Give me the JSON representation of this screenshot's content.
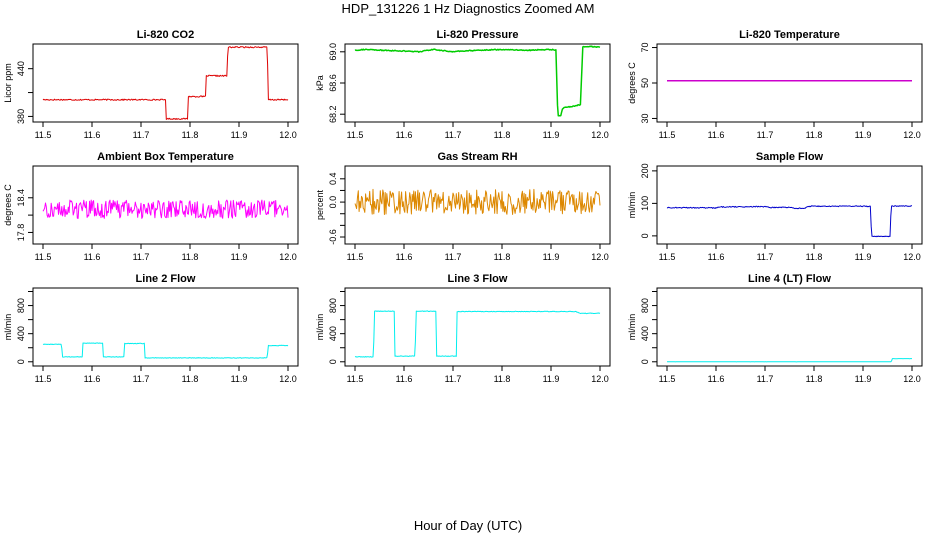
{
  "title": "HDP_131226  1 Hz Diagnostics Zoomed AM",
  "xlabel": "Hour of Day (UTC)",
  "chart_data": [
    {
      "type": "line",
      "title": "Li-820 CO2",
      "ylabel": "Licor ppm",
      "color": "#dd0000",
      "xlim": [
        11.5,
        12.0
      ],
      "ylim": [
        373,
        471
      ],
      "xticks": [
        "11.5",
        "11.6",
        "11.7",
        "11.8",
        "11.9",
        "12.0"
      ],
      "yticks": [
        380,
        410,
        440
      ],
      "yticklabels": [
        "380",
        "",
        "440"
      ],
      "noise": 0.8,
      "series": [
        {
          "x": [
            11.5,
            11.75,
            11.751,
            11.795,
            11.796,
            11.832,
            11.833,
            11.876,
            11.877,
            11.958,
            11.959,
            12.0
          ],
          "values": [
            401,
            401,
            377,
            377,
            405,
            405,
            431,
            431,
            467,
            467,
            401,
            401
          ]
        }
      ]
    },
    {
      "type": "line",
      "title": "Li-820 Pressure",
      "ylabel": "kPa",
      "color": "#00cc00",
      "xlim": [
        11.5,
        12.0
      ],
      "ylim": [
        68.1,
        69.1
      ],
      "xticks": [
        "11.5",
        "11.6",
        "11.7",
        "11.8",
        "11.9",
        "12.0"
      ],
      "yticks": [
        68.2,
        68.6,
        69.0
      ],
      "yticklabels": [
        "68.2",
        "68.6",
        "69.0"
      ],
      "noise": 0.006,
      "series": [
        {
          "x": [
            11.5,
            11.52,
            11.55,
            11.6,
            11.63,
            11.66,
            11.7,
            11.72,
            11.75,
            11.8,
            11.85,
            11.9,
            11.91,
            11.914,
            11.92,
            11.924,
            11.96,
            11.965,
            11.975,
            12.0
          ],
          "values": [
            69.02,
            69.03,
            69.02,
            69.01,
            69.0,
            69.03,
            69.0,
            69.01,
            69.02,
            69.03,
            69.02,
            69.03,
            69.02,
            68.18,
            68.18,
            68.28,
            68.32,
            69.06,
            69.07,
            69.06
          ]
        }
      ]
    },
    {
      "type": "line",
      "title": "Li-820 Temperature",
      "ylabel": "degrees C",
      "color": "#cc00cc",
      "xlim": [
        11.5,
        12.0
      ],
      "ylim": [
        28,
        72
      ],
      "xticks": [
        "11.5",
        "11.6",
        "11.7",
        "11.8",
        "11.9",
        "12.0"
      ],
      "yticks": [
        30,
        50,
        70
      ],
      "yticklabels": [
        "30",
        "50",
        "70"
      ],
      "noise": 0,
      "series": [
        {
          "x": [
            11.5,
            12.0
          ],
          "values": [
            51.3,
            51.3
          ]
        }
      ]
    },
    {
      "type": "line",
      "title": "Ambient Box Temperature",
      "ylabel": "degrees C",
      "color": "#ff00ff",
      "xlim": [
        11.5,
        12.0
      ],
      "ylim": [
        17.6,
        18.95
      ],
      "xticks": [
        "11.5",
        "11.6",
        "11.7",
        "11.8",
        "11.9",
        "12.0"
      ],
      "yticks": [
        17.8,
        18.1,
        18.4
      ],
      "yticklabels": [
        "17.8",
        "",
        "18.4"
      ],
      "noise": 0.16,
      "series": [
        {
          "x": [
            11.5,
            12.0
          ],
          "values": [
            18.2,
            18.2
          ]
        }
      ]
    },
    {
      "type": "line",
      "title": "Gas Stream RH",
      "ylabel": "percent",
      "color": "#dd8800",
      "xlim": [
        11.5,
        12.0
      ],
      "ylim": [
        -0.72,
        0.62
      ],
      "xticks": [
        "11.5",
        "11.6",
        "11.7",
        "11.8",
        "11.9",
        "12.0"
      ],
      "yticks": [
        -0.6,
        -0.4,
        -0.2,
        0.0,
        0.2,
        0.4
      ],
      "yticklabels": [
        "-0.6",
        "",
        "",
        "0.0",
        "",
        "0.4"
      ],
      "noise": 0.22,
      "series": [
        {
          "x": [
            11.5,
            12.0
          ],
          "values": [
            0.0,
            0.0
          ]
        }
      ]
    },
    {
      "type": "line",
      "title": "Sample Flow",
      "ylabel": "ml/min",
      "color": "#0000cc",
      "xlim": [
        11.5,
        12.0
      ],
      "ylim": [
        -25,
        215
      ],
      "xticks": [
        "11.5",
        "11.6",
        "11.7",
        "11.8",
        "11.9",
        "12.0"
      ],
      "yticks": [
        0,
        100,
        200
      ],
      "yticklabels": [
        "0",
        "100",
        "200"
      ],
      "noise": 1.5,
      "series": [
        {
          "x": [
            11.5,
            11.6,
            11.61,
            11.7,
            11.71,
            11.75,
            11.76,
            11.78,
            11.79,
            11.916,
            11.917,
            11.956,
            11.957,
            12.0
          ],
          "values": [
            87,
            86,
            89,
            90,
            87,
            88,
            85,
            85,
            91,
            91,
            -2,
            -2,
            92,
            92
          ]
        }
      ]
    },
    {
      "type": "line",
      "title": "Line 2 Flow",
      "ylabel": "ml/min",
      "color": "#00eeee",
      "xlim": [
        11.5,
        12.0
      ],
      "ylim": [
        -60,
        1050
      ],
      "xticks": [
        "11.5",
        "11.6",
        "11.7",
        "11.8",
        "11.9",
        "12.0"
      ],
      "yticks": [
        0,
        200,
        400,
        600,
        800,
        1000
      ],
      "yticklabels": [
        "0",
        "",
        "400",
        "",
        "800",
        ""
      ],
      "noise": 4,
      "series": [
        {
          "x": [
            11.5,
            11.538,
            11.539,
            11.58,
            11.581,
            11.622,
            11.623,
            11.665,
            11.666,
            11.707,
            11.708,
            11.958,
            11.959,
            12.0
          ],
          "values": [
            250,
            250,
            70,
            70,
            265,
            265,
            70,
            70,
            260,
            260,
            55,
            55,
            230,
            230
          ]
        }
      ]
    },
    {
      "type": "line",
      "title": "Line 3 Flow",
      "ylabel": "ml/min",
      "color": "#00eeee",
      "xlim": [
        11.5,
        12.0
      ],
      "ylim": [
        -60,
        1050
      ],
      "xticks": [
        "11.5",
        "11.6",
        "11.7",
        "11.8",
        "11.9",
        "12.0"
      ],
      "yticks": [
        0,
        200,
        400,
        600,
        800,
        1000
      ],
      "yticklabels": [
        "0",
        "",
        "400",
        "",
        "800",
        ""
      ],
      "noise": 4,
      "series": [
        {
          "x": [
            11.5,
            11.538,
            11.539,
            11.58,
            11.581,
            11.623,
            11.624,
            11.665,
            11.666,
            11.707,
            11.708,
            11.95,
            11.96,
            12.0
          ],
          "values": [
            70,
            70,
            720,
            720,
            80,
            80,
            720,
            720,
            80,
            80,
            715,
            715,
            690,
            690
          ]
        }
      ]
    },
    {
      "type": "line",
      "title": "Line 4 (LT) Flow",
      "ylabel": "ml/min",
      "color": "#00eeee",
      "xlim": [
        11.5,
        12.0
      ],
      "ylim": [
        -60,
        1050
      ],
      "xticks": [
        "11.5",
        "11.6",
        "11.7",
        "11.8",
        "11.9",
        "12.0"
      ],
      "yticks": [
        0,
        200,
        400,
        600,
        800,
        1000
      ],
      "yticklabels": [
        "0",
        "",
        "400",
        "",
        "800",
        ""
      ],
      "noise": 1,
      "series": [
        {
          "x": [
            11.5,
            11.958,
            11.959,
            12.0
          ],
          "values": [
            0,
            0,
            45,
            45
          ]
        }
      ]
    }
  ]
}
